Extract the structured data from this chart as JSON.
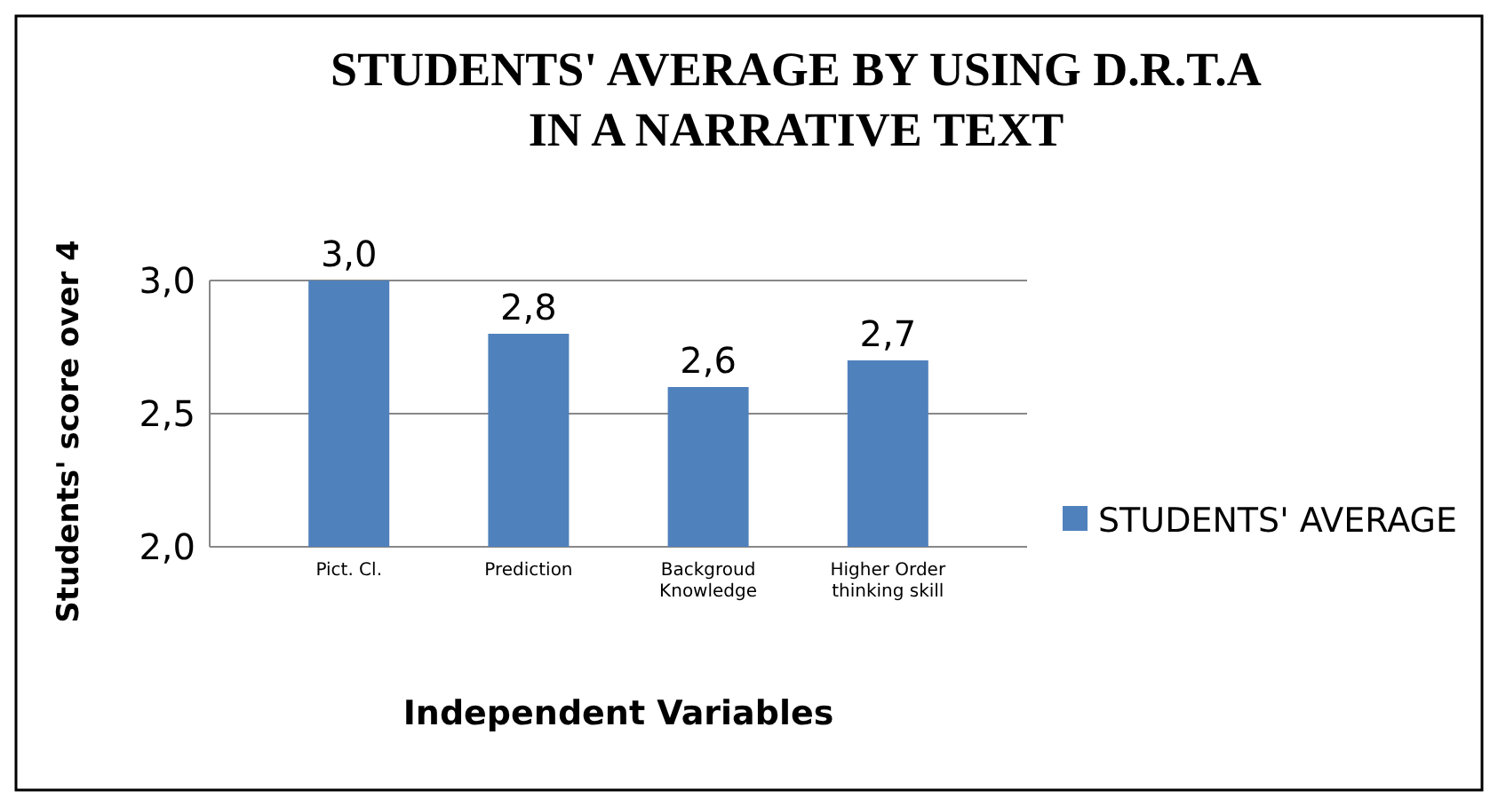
{
  "chart_data": {
    "type": "bar",
    "title": "STUDENTS' AVERAGE BY USING D.R.T.A\nIN A NARRATIVE TEXT",
    "xlabel": "Independent Variables",
    "ylabel": "Students' score over 4",
    "categories": [
      "Pict. Cl.",
      "Prediction",
      "Backgroud Knowledge",
      "Higher Order thinking skill"
    ],
    "series": [
      {
        "name": "STUDENTS' AVERAGE",
        "color": "#4f81bd",
        "values": [
          3.0,
          2.8,
          2.6,
          2.7
        ],
        "value_labels": [
          "3,0",
          "2,8",
          "2,6",
          "2,7"
        ]
      }
    ],
    "ylim": [
      2,
      3
    ],
    "yticks": [
      {
        "value": 2,
        "label": "2,0"
      },
      {
        "value": 2.5,
        "label": "2,5"
      },
      {
        "value": 3,
        "label": "3,0"
      }
    ],
    "grid": "y",
    "legend": "right"
  }
}
